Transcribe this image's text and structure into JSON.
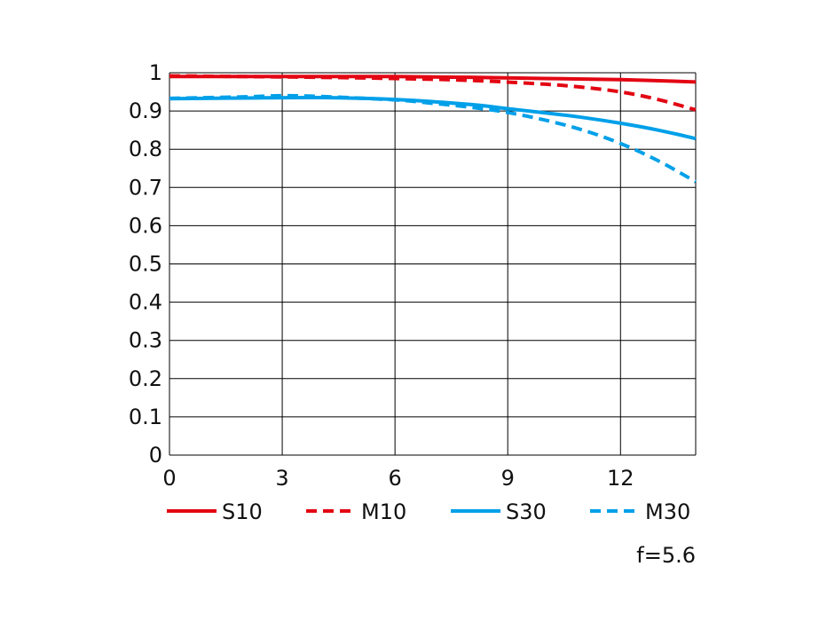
{
  "chart_data": {
    "type": "line",
    "title": "",
    "xlabel": "",
    "ylabel": "",
    "xlim": [
      0,
      14
    ],
    "ylim": [
      0,
      1
    ],
    "x_ticks": [
      "0",
      "3",
      "6",
      "9",
      "12"
    ],
    "y_ticks": [
      "0",
      "0.1",
      "0.2",
      "0.3",
      "0.4",
      "0.5",
      "0.6",
      "0.7",
      "0.8",
      "0.9",
      "1"
    ],
    "grid": true,
    "legend_position": "bottom",
    "annotation": "f=5.6",
    "series": [
      {
        "name": "S10",
        "color": "#e30613",
        "style": "solid",
        "x": [
          0,
          2,
          4,
          6,
          8,
          10,
          12,
          14
        ],
        "y": [
          0.99,
          0.99,
          0.99,
          0.99,
          0.988,
          0.985,
          0.982,
          0.976
        ]
      },
      {
        "name": "M10",
        "color": "#e30613",
        "style": "dashed",
        "x": [
          0,
          2,
          4,
          6,
          8,
          10,
          11,
          12,
          13,
          14
        ],
        "y": [
          0.992,
          0.99,
          0.988,
          0.985,
          0.98,
          0.97,
          0.962,
          0.95,
          0.93,
          0.903
        ]
      },
      {
        "name": "S30",
        "color": "#00a0e9",
        "style": "solid",
        "x": [
          0,
          2,
          4,
          6,
          8,
          9,
          10,
          11,
          12,
          13,
          14
        ],
        "y": [
          0.932,
          0.934,
          0.935,
          0.93,
          0.917,
          0.906,
          0.895,
          0.883,
          0.868,
          0.85,
          0.828
        ]
      },
      {
        "name": "M30",
        "color": "#00a0e9",
        "style": "dashed",
        "x": [
          0,
          2,
          3,
          4,
          6,
          7,
          8,
          9,
          10,
          11,
          12,
          13,
          14
        ],
        "y": [
          0.933,
          0.937,
          0.94,
          0.938,
          0.929,
          0.92,
          0.91,
          0.896,
          0.876,
          0.85,
          0.815,
          0.77,
          0.715
        ]
      }
    ]
  }
}
